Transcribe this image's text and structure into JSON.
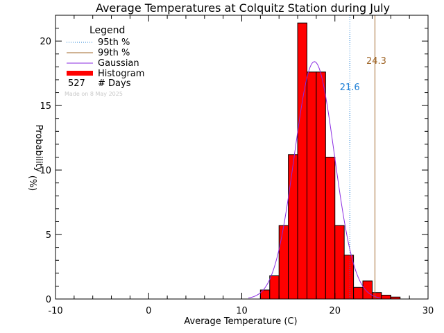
{
  "chart_data": {
    "type": "bar",
    "title": "Average Temperatures at Colquitz Station during July",
    "xlabel": "Average Temperature (C)",
    "ylabel_lines": [
      "Probability",
      "(%)"
    ],
    "xlim": [
      -10,
      30
    ],
    "ylim": [
      0,
      22
    ],
    "xticks": [
      -10,
      0,
      10,
      20,
      30
    ],
    "yticks": [
      0,
      5,
      10,
      15,
      20
    ],
    "bin_width": 1,
    "histogram": {
      "bin_starts": [
        12,
        13,
        14,
        15,
        16,
        17,
        18,
        19,
        20,
        21,
        22,
        23,
        24,
        25,
        26
      ],
      "values": [
        0.7,
        1.8,
        5.7,
        11.2,
        21.4,
        17.6,
        17.6,
        11.0,
        5.7,
        3.4,
        0.9,
        1.4,
        0.5,
        0.3,
        0.15
      ]
    },
    "gaussian": {
      "mean": 17.8,
      "sigma": 2.15,
      "peak": 18.4
    },
    "percentiles": [
      {
        "name": "95th %",
        "value": 21.6,
        "label": "21.6",
        "color": "#1e7fd6",
        "style": "dotted"
      },
      {
        "name": "99th %",
        "value": 24.3,
        "label": "24.3",
        "color": "#a0672a",
        "style": "solid"
      }
    ],
    "colors": {
      "histogram": "#ff0000",
      "gaussian": "#8a2be2"
    },
    "legend": {
      "title": "Legend",
      "placement": "top-left",
      "entries": [
        {
          "label": "95th %",
          "kind": "dotted",
          "color": "#1e7fd6"
        },
        {
          "label": "99th %",
          "kind": "line",
          "color": "#a0672a"
        },
        {
          "label": "Gaussian",
          "kind": "line",
          "color": "#8a2be2"
        },
        {
          "label": "Histogram",
          "kind": "bar",
          "color": "#ff0000"
        }
      ],
      "days_count": "527",
      "days_label": "# Days"
    },
    "watermark": "Made on 8 May 2025"
  }
}
